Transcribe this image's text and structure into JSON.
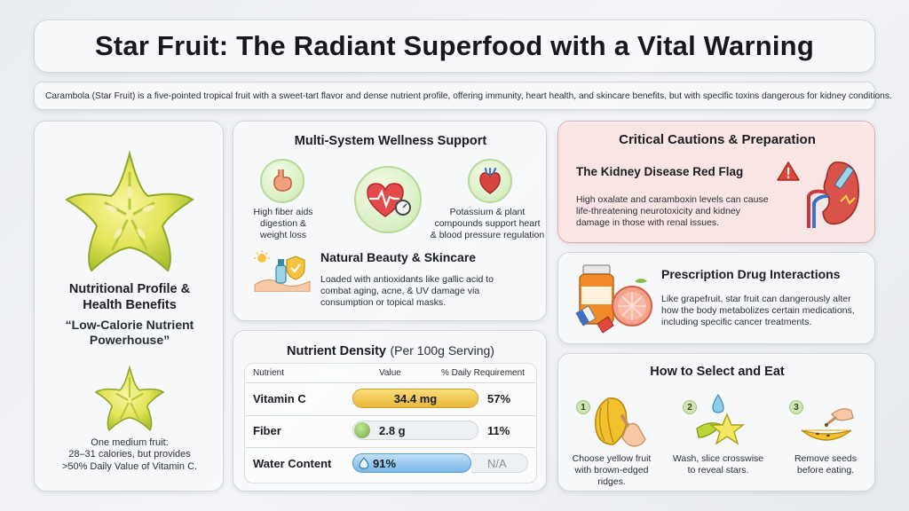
{
  "title": "Star Fruit: The Radiant Superfood with a Vital Warning",
  "intro": "Carambola (Star Fruit) is a five-pointed tropical fruit with a sweet-tart flavor and dense nutrient profile, offering immunity, heart health, and skincare benefits, but with specific toxins dangerous for kidney conditions.",
  "left": {
    "heading_line1": "Nutritional Profile &",
    "heading_line2": "Health Benefits",
    "quote_line1": "“Low-Calorie Nutrient",
    "quote_line2": "Powerhouse”",
    "note_line1": "One medium fruit:",
    "note_line2": "28–31 calories, but provides",
    "note_line3": ">50% Daily Value of Vitamin C.",
    "icons": [
      "star-fruit-large-icon",
      "star-fruit-small-icon"
    ]
  },
  "wellness": {
    "heading": "Multi-System Wellness Support",
    "digestion_line1": "High fiber aids",
    "digestion_line2": "digestion &",
    "digestion_line3": "weight loss",
    "heart_line1": "Potassium & plant",
    "heart_line2": "compounds support heart",
    "heart_line3": "& blood pressure regulation",
    "beauty_heading": "Natural Beauty & Skincare",
    "beauty_line1": "Loaded with antioxidants like gallic acid to",
    "beauty_line2": "combat aging, acne, & UV damage via",
    "beauty_line3": "consumption or topical masks.",
    "icons": [
      "stomach-icon",
      "heart-monitor-icon",
      "anatomical-heart-icon",
      "skincare-icon"
    ]
  },
  "nutrients": {
    "heading": "Nutrient Density",
    "heading_sub": "(Per 100g Serving)",
    "col_nutrient": "Nutrient",
    "col_value": "Value",
    "col_dv": "% Daily Requirement",
    "rows": [
      {
        "name": "Vitamin C",
        "value": "34.4 mg",
        "dv": "57%",
        "color": "#f2c84b"
      },
      {
        "name": "Fiber",
        "value": "2.8 g",
        "dv": "11%",
        "color": "#8cc65a"
      },
      {
        "name": "Water Content",
        "value": "91%",
        "dv": "N/A",
        "color": "#7fb8e6"
      }
    ]
  },
  "cautions": {
    "heading": "Critical Cautions & Preparation",
    "kidney_heading": "The Kidney Disease Red Flag",
    "kidney_line1": "High oxalate and caramboxin levels can cause",
    "kidney_line2": "life-threatening neurotoxicity and kidney",
    "kidney_line3": "damage in those with renal issues.",
    "icons": [
      "warning-icon",
      "kidney-icon"
    ],
    "accent": "#d94a3d"
  },
  "drugs": {
    "heading": "Prescription Drug Interactions",
    "line1": "Like grapefruit, star fruit can dangerously alter",
    "line2": "how the body metabolizes certain medications,",
    "line3": "including specific cancer treatments.",
    "icons": [
      "pill-bottle-icon",
      "grapefruit-icon"
    ]
  },
  "select": {
    "heading": "How to Select and Eat",
    "steps": [
      {
        "num": "1",
        "line1": "Choose yellow fruit",
        "line2": "with brown-edged ridges."
      },
      {
        "num": "2",
        "line1": "Wash, slice crosswise",
        "line2": "to reveal stars."
      },
      {
        "num": "3",
        "line1": "Remove seeds",
        "line2": "before eating."
      }
    ]
  }
}
